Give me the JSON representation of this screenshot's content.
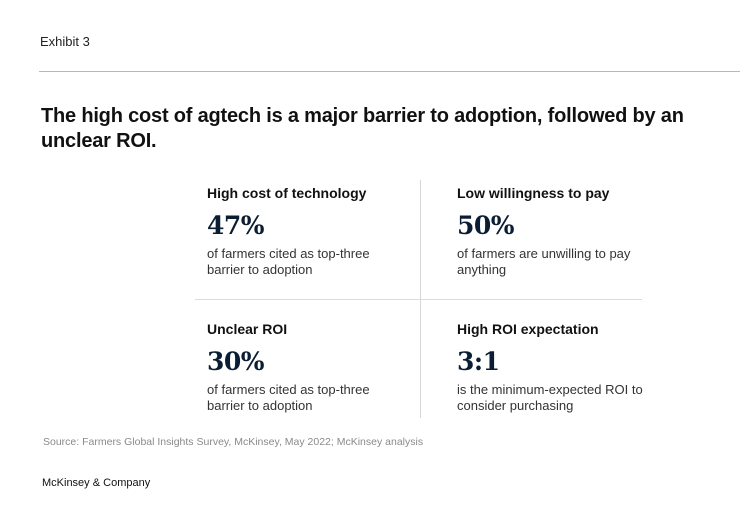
{
  "exhibit_label": "Exhibit 3",
  "title": "The high cost of agtech is a major barrier to adoption, followed by an unclear ROI.",
  "cells": [
    {
      "heading": "High cost of technology",
      "stat": "47%",
      "description": "of farmers cited as top-three barrier to adoption"
    },
    {
      "heading": "Low willingness to pay",
      "stat": "50%",
      "description": "of farmers are unwilling to pay anything"
    },
    {
      "heading": "Unclear ROI",
      "stat": "30%",
      "description": "of farmers cited as top-three barrier to adoption"
    },
    {
      "heading": "High ROI expectation",
      "stat": "3:1",
      "description": "is the minimum-expected ROI to consider purchasing"
    }
  ],
  "source": "Source: Farmers Global Insights Survey, McKinsey, May 2022; McKinsey analysis",
  "brand": "McKinsey & Company"
}
